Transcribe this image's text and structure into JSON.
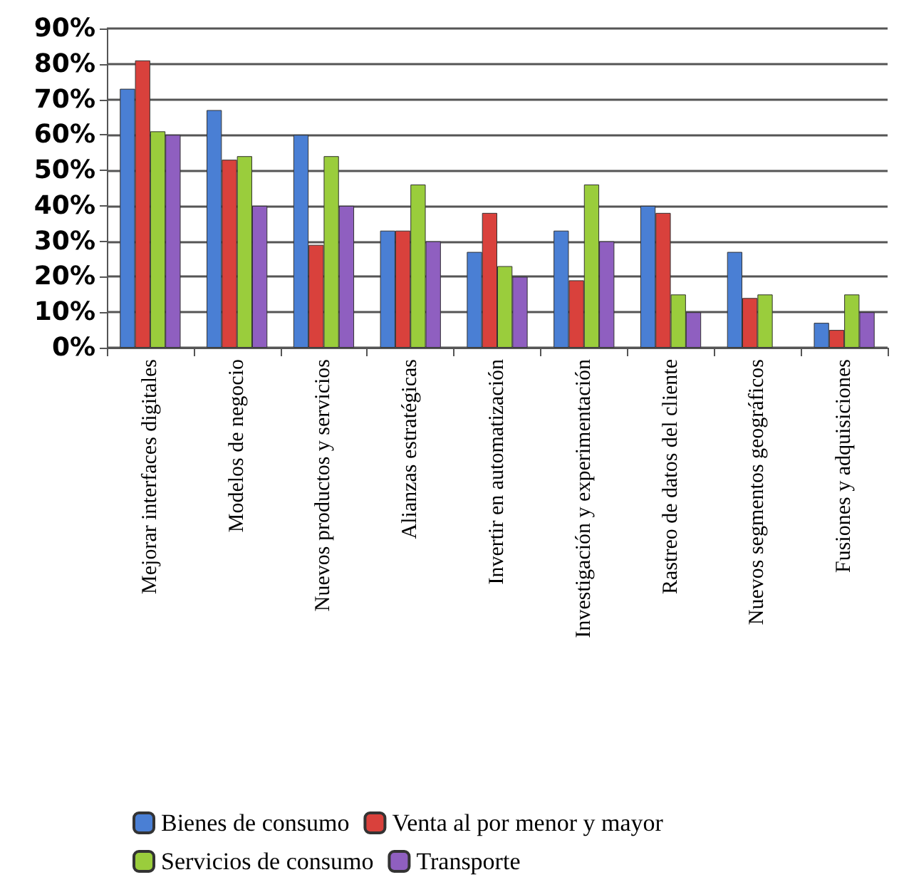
{
  "chart_data": {
    "type": "bar",
    "categories": [
      "Mejorar interfaces digitales",
      "Modelos de negocio",
      "Nuevos productos y servicios",
      "Alianzas estratégicas",
      "Invertir en automatización",
      "Investigación y experimentación",
      "Rastreo de datos del cliente",
      "Nuevos segmentos geográficos",
      "Fusiones y adquisiciones"
    ],
    "series": [
      {
        "name": "Bienes de consumo",
        "color": "#4a7fd4",
        "values": [
          73,
          67,
          60,
          33,
          27,
          33,
          40,
          27,
          7
        ]
      },
      {
        "name": "Venta al por menor y mayor",
        "color": "#d9413c",
        "values": [
          81,
          53,
          29,
          33,
          38,
          19,
          38,
          14,
          5
        ]
      },
      {
        "name": "Servicios de consumo",
        "color": "#9acd3c",
        "values": [
          61,
          54,
          54,
          46,
          23,
          46,
          15,
          15,
          15
        ]
      },
      {
        "name": "Transporte",
        "color": "#8f5fc0",
        "values": [
          60,
          40,
          40,
          30,
          20,
          30,
          10,
          null,
          10
        ]
      }
    ],
    "ylim": [
      0,
      90
    ],
    "yticks": [
      {
        "value": 0,
        "label": "0%"
      },
      {
        "value": 10,
        "label": "10%"
      },
      {
        "value": 20,
        "label": "20%"
      },
      {
        "value": 30,
        "label": "30%"
      },
      {
        "value": 40,
        "label": "40%"
      },
      {
        "value": 50,
        "label": "50%"
      },
      {
        "value": 60,
        "label": "60%"
      },
      {
        "value": 70,
        "label": "70%"
      },
      {
        "value": 80,
        "label": "80%"
      },
      {
        "value": 90,
        "label": "90%"
      }
    ],
    "grid": "y",
    "legend": "bottom"
  }
}
